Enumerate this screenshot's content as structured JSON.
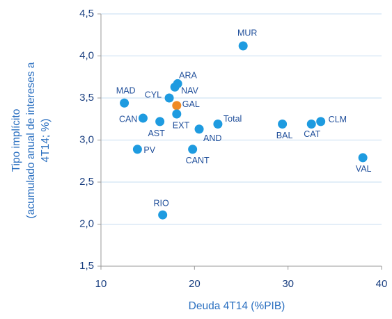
{
  "chart_data": {
    "type": "scatter",
    "x_label": "Deuda 4T14 (%PIB)",
    "y_label": [
      "Tipo implícito",
      "(acumulado anual de intereses a",
      "4T14; %)"
    ],
    "labels": [
      "MUR",
      "ARA",
      "NAV",
      "CYL",
      "MAD",
      "GAL",
      "EXT",
      "CAN",
      "AST",
      "Total",
      "AND",
      "PV",
      "CANT",
      "BAL",
      "CAT",
      "CLM",
      "VAL",
      "RIO"
    ],
    "x": [
      25.2,
      18.2,
      17.9,
      17.3,
      12.5,
      18.1,
      18.1,
      14.5,
      16.3,
      22.5,
      20.5,
      13.9,
      19.8,
      29.4,
      32.5,
      33.5,
      38.0,
      16.6
    ],
    "y": [
      4.12,
      3.67,
      3.63,
      3.5,
      3.44,
      3.41,
      3.31,
      3.26,
      3.22,
      3.19,
      3.13,
      2.89,
      2.89,
      3.19,
      3.19,
      3.22,
      2.79,
      2.11
    ],
    "colors": [
      "#1e9be0",
      "#1e9be0",
      "#1e9be0",
      "#1e9be0",
      "#1e9be0",
      "#f08a24",
      "#1e9be0",
      "#1e9be0",
      "#1e9be0",
      "#1e9be0",
      "#1e9be0",
      "#1e9be0",
      "#1e9be0",
      "#1e9be0",
      "#1e9be0",
      "#1e9be0",
      "#1e9be0",
      "#1e9be0"
    ],
    "xlim": [
      10,
      40
    ],
    "xticks": [
      10,
      20,
      30,
      40
    ],
    "ylim": [
      1.5,
      4.5
    ],
    "yticks": [
      {
        "value": 1.5,
        "label": "1,5"
      },
      {
        "value": 2.0,
        "label": "2,0"
      },
      {
        "value": 2.5,
        "label": "2,5"
      },
      {
        "value": 3.0,
        "label": "3,0"
      },
      {
        "value": 3.5,
        "label": "3,5"
      },
      {
        "value": 4.0,
        "label": "4,0"
      },
      {
        "value": 4.5,
        "label": "4,5"
      }
    ],
    "grid": true
  }
}
